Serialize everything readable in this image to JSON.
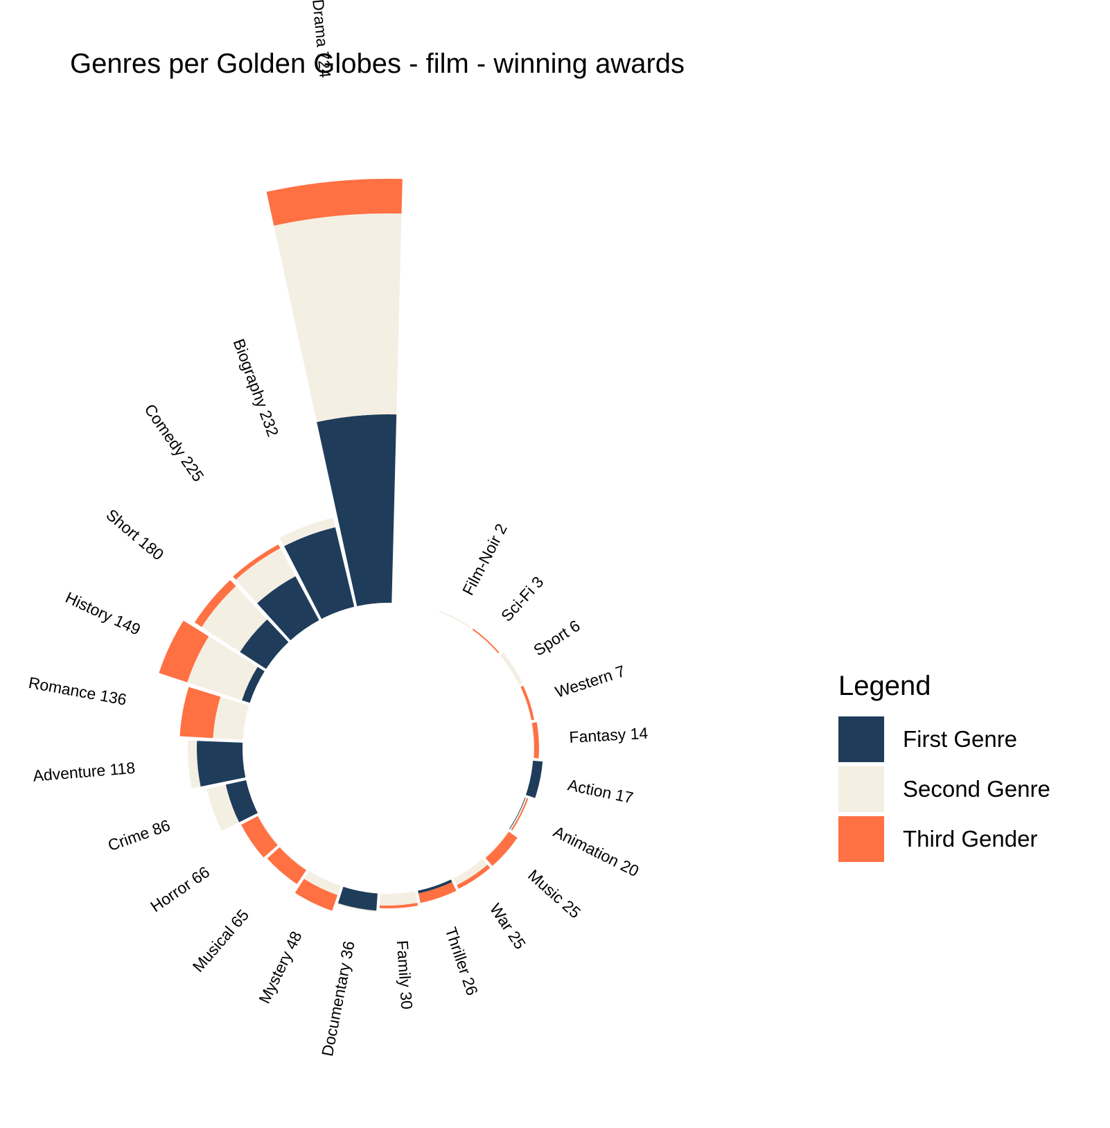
{
  "chart_data": {
    "type": "bar",
    "subtype": "circular-stacked-bar",
    "title": "Genres per Golden Globes - film - winning awards",
    "xlabel": "",
    "ylabel": "",
    "grid": false,
    "legend_position": "right",
    "categories": [
      "Drama",
      "Biography",
      "Comedy",
      "Short",
      "History",
      "Romance",
      "Adventure",
      "Crime",
      "Horror",
      "Musical",
      "Mystery",
      "Documentary",
      "Family",
      "Thriller",
      "War",
      "Music",
      "Animation",
      "Action",
      "Fantasy",
      "Western",
      "Sport",
      "Sci-Fi",
      "Film-Noir"
    ],
    "totals": [
      724,
      232,
      225,
      180,
      149,
      136,
      118,
      86,
      66,
      65,
      48,
      36,
      30,
      26,
      25,
      25,
      20,
      17,
      14,
      7,
      6,
      3,
      2
    ],
    "series": [
      {
        "name": "First Genre",
        "color": "#1f3d5a",
        "values": [
          272,
          118,
          72,
          45,
          12,
          0,
          66,
          30,
          0,
          0,
          0,
          25,
          0,
          4,
          0,
          0,
          1,
          14,
          0,
          0,
          0,
          0,
          0
        ]
      },
      {
        "name": "Second Genre",
        "color": "#f4efe3",
        "values": [
          290,
          14,
          46,
          66,
          83,
          43,
          13,
          28,
          2,
          2,
          14,
          2,
          17,
          0,
          11,
          2,
          2,
          0,
          1,
          1,
          6,
          0,
          2
        ]
      },
      {
        "name": "Third Gender",
        "color": "#ff7043",
        "values": [
          50,
          0,
          6,
          12,
          43,
          48,
          0,
          0,
          27,
          24,
          24,
          0,
          4,
          14,
          6,
          15,
          2,
          0,
          7,
          4,
          0,
          2,
          0
        ]
      }
    ]
  },
  "legend": {
    "title": "Legend",
    "items": [
      {
        "label": "First Genre",
        "color": "#1f3d5a"
      },
      {
        "label": "Second Genre",
        "color": "#f4efe3"
      },
      {
        "label": "Third Gender",
        "color": "#ff7043"
      }
    ]
  }
}
